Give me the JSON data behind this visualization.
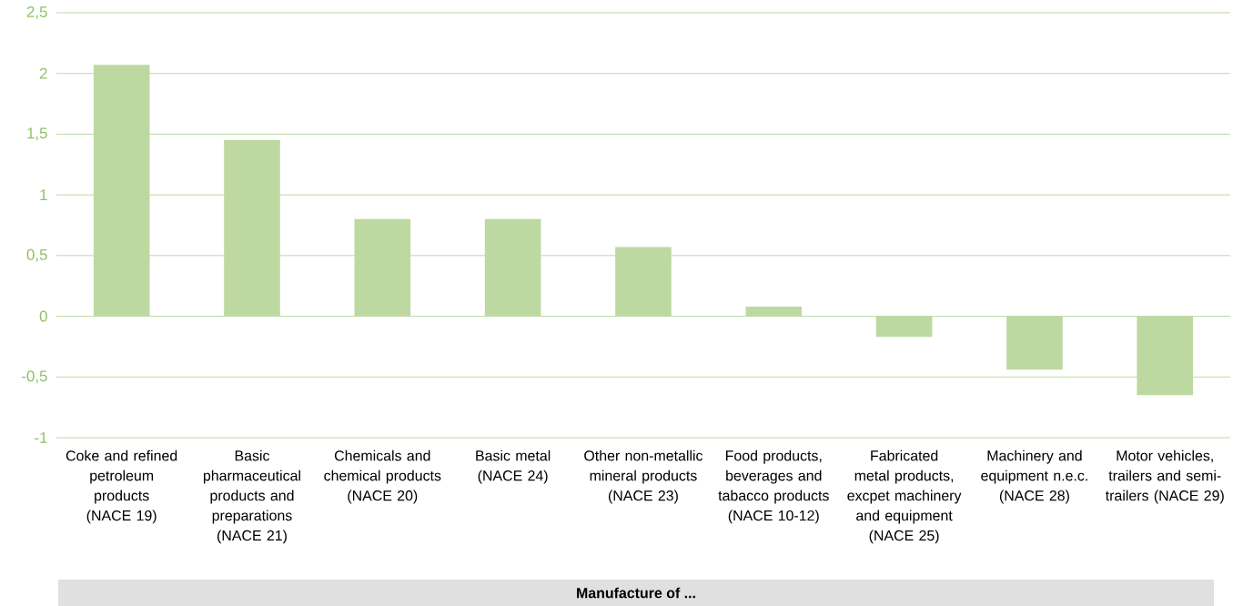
{
  "chart_data": {
    "type": "bar",
    "xlabel": "Manufacture of ...",
    "categories": [
      "Coke and refined petroleum products (NACE 19)",
      "Basic pharmaceutical products and preparations (NACE 21)",
      "Chemicals and chemical products (NACE 20)",
      "Basic metal (NACE 24)",
      "Other non-metallic mineral products (NACE 23)",
      "Food products, beverages and tabacco products (NACE 10-12)",
      "Fabricated metal products, excpet machinery and equipment (NACE 25)",
      "Machinery and equipment n.e.c. (NACE 28)",
      "Motor vehicles, trailers and semi-trailers (NACE 29)"
    ],
    "values": [
      2.07,
      1.45,
      0.8,
      0.8,
      0.57,
      0.08,
      -0.17,
      -0.44,
      -0.65
    ],
    "color": "#bdd9a1",
    "ylim": [
      -1,
      2.5
    ],
    "yticks": [
      {
        "value": -1,
        "label": "-1"
      },
      {
        "value": -0.5,
        "label": "-0,5"
      },
      {
        "value": 0,
        "label": "0"
      },
      {
        "value": 0.5,
        "label": "0,5"
      },
      {
        "value": 1,
        "label": "1"
      },
      {
        "value": 1.5,
        "label": "1,5"
      },
      {
        "value": 2,
        "label": "2"
      },
      {
        "value": 2.5,
        "label": "2,5"
      }
    ],
    "grid": "y"
  }
}
